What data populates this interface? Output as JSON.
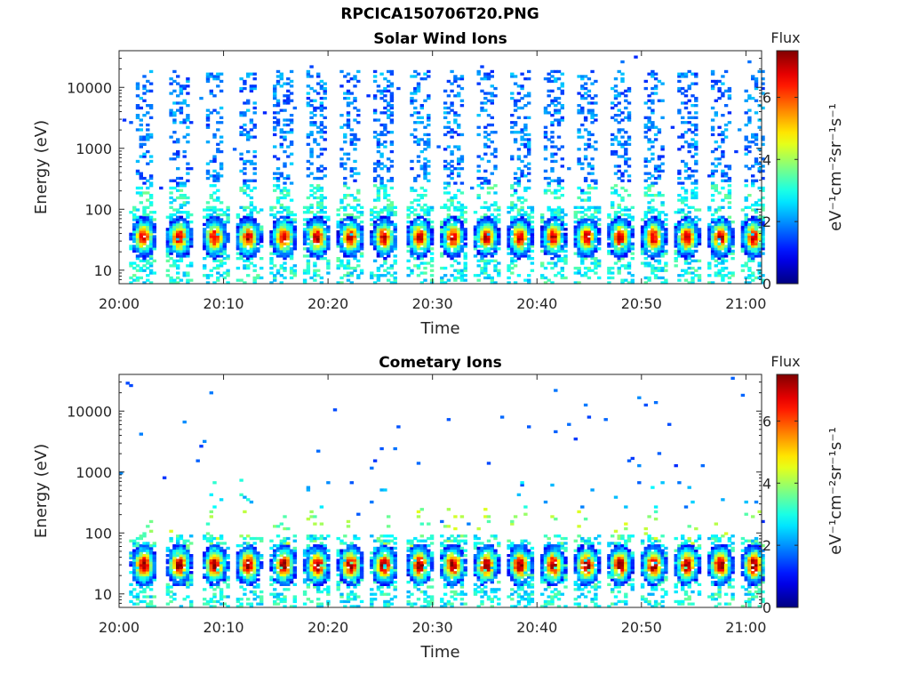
{
  "figure": {
    "title": "RPCICA150706T20.PNG"
  },
  "colors": {
    "axis": "#262626",
    "background": "#ffffff",
    "colormap": "jet"
  },
  "chart_data": [
    {
      "type": "heatmap",
      "title": "Solar Wind Ions",
      "xlabel": "Time",
      "ylabel": "Energy (eV)",
      "x_ticks": [
        "20:00",
        "20:10",
        "20:20",
        "20:30",
        "20:40",
        "20:50",
        "21:00"
      ],
      "x_tick_minutes": [
        0,
        10,
        20,
        30,
        40,
        50,
        60
      ],
      "xlim_minutes": [
        0,
        61.5
      ],
      "y_scale": "log",
      "y_ticks": [
        "10",
        "100",
        "1000",
        "10000"
      ],
      "y_tick_values": [
        10,
        100,
        1000,
        10000
      ],
      "ylim": [
        6,
        40000
      ],
      "colorbar": {
        "label": "eV⁻¹cm⁻²sr⁻¹s⁻¹",
        "title": "Flux",
        "range": [
          0,
          7.5
        ],
        "ticks": [
          "0",
          "2",
          "4",
          "6"
        ]
      },
      "bursts_center_minutes": [
        2.2,
        5.6,
        9.0,
        12.2,
        15.6,
        18.8,
        22.0,
        25.2,
        28.6,
        31.8,
        35.0,
        38.2,
        41.4,
        44.6,
        47.8,
        51.0,
        54.2,
        57.4,
        60.6
      ],
      "peak_energy_eV": 35,
      "peak_flux_log": 6.5,
      "tail_max_energy_eV": 20000,
      "tail_flux_log": 1.2
    },
    {
      "type": "heatmap",
      "title": "Cometary Ions",
      "xlabel": "Time",
      "ylabel": "Energy (eV)",
      "x_ticks": [
        "20:00",
        "20:10",
        "20:20",
        "20:30",
        "20:40",
        "20:50",
        "21:00"
      ],
      "x_tick_minutes": [
        0,
        10,
        20,
        30,
        40,
        50,
        60
      ],
      "xlim_minutes": [
        0,
        61.5
      ],
      "y_scale": "log",
      "y_ticks": [
        "10",
        "100",
        "1000",
        "10000"
      ],
      "y_tick_values": [
        10,
        100,
        1000,
        10000
      ],
      "ylim": [
        6,
        40000
      ],
      "colorbar": {
        "label": "eV⁻¹cm⁻²sr⁻¹s⁻¹",
        "title": "Flux",
        "range": [
          0,
          7.5
        ],
        "ticks": [
          "0",
          "2",
          "4",
          "6"
        ]
      },
      "bursts_center_minutes": [
        2.2,
        5.6,
        9.0,
        12.2,
        15.6,
        18.8,
        22.0,
        25.2,
        28.6,
        31.8,
        35.0,
        38.2,
        41.4,
        44.6,
        47.8,
        51.0,
        54.2,
        57.4,
        60.6
      ],
      "peak_energy_eV": 30,
      "peak_flux_log": 7.0,
      "tail_max_energy_eV": 1000,
      "tail_flux_log": 2.0
    }
  ]
}
